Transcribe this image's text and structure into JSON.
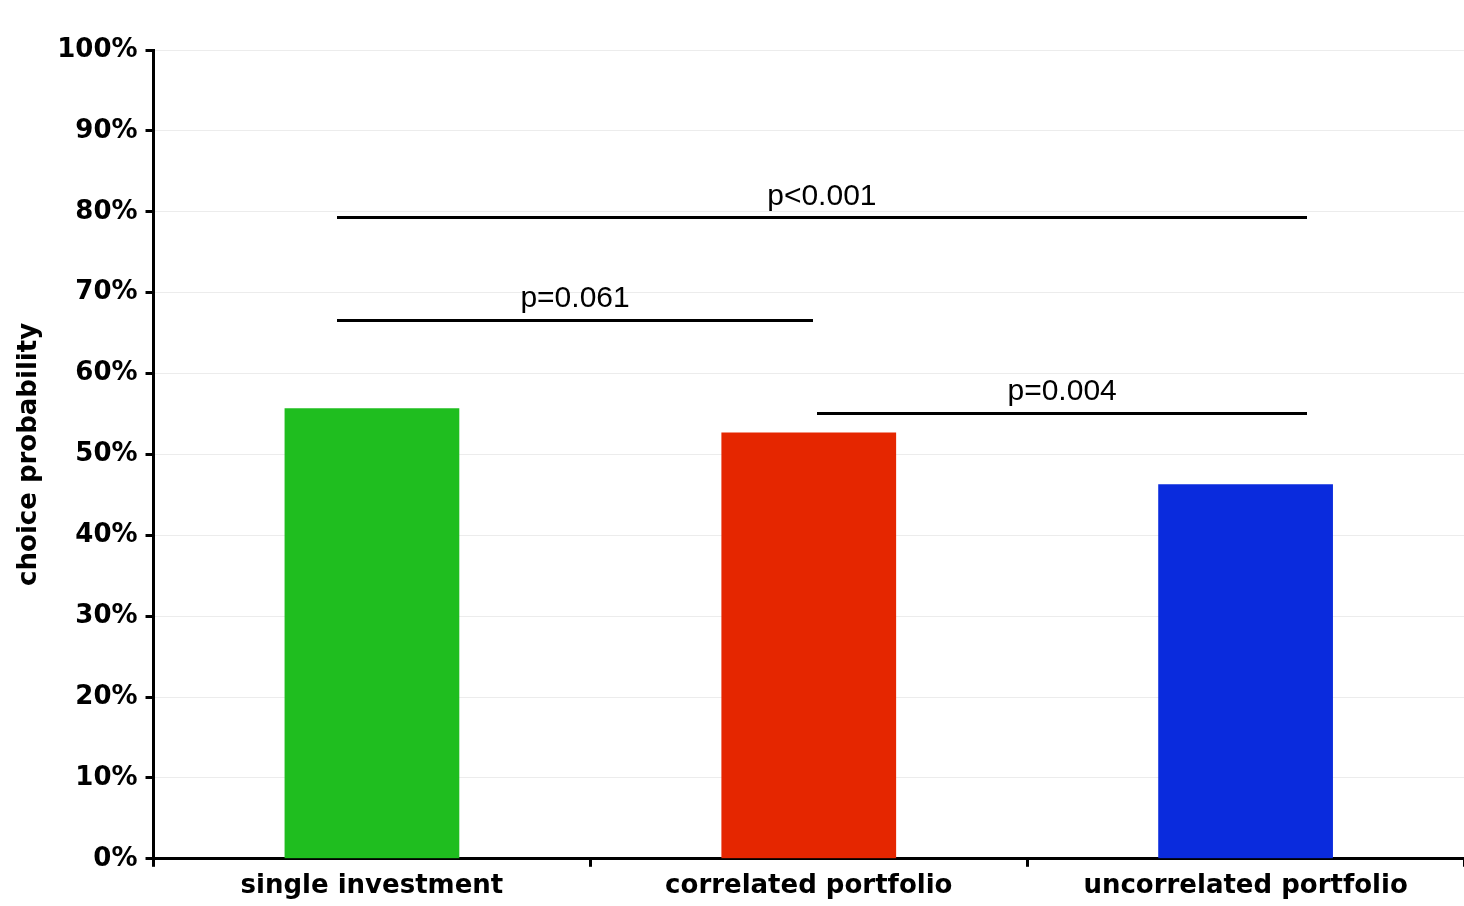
{
  "chart_data": {
    "type": "bar",
    "ylabel": "choice probability",
    "categories": [
      "single investment",
      "correlated portfolio",
      "uncorrelated portfolio"
    ],
    "values": [
      55.7,
      52.7,
      46.3
    ],
    "colors": [
      "#1fbe1f",
      "#e52600",
      "#0a2bdd"
    ],
    "ylim": [
      0,
      100
    ],
    "yticks": [
      {
        "value": 0,
        "label": "0%"
      },
      {
        "value": 10,
        "label": "10%"
      },
      {
        "value": 20,
        "label": "20%"
      },
      {
        "value": 30,
        "label": "30%"
      },
      {
        "value": 40,
        "label": "40%"
      },
      {
        "value": 50,
        "label": "50%"
      },
      {
        "value": 60,
        "label": "60%"
      },
      {
        "value": 70,
        "label": "70%"
      },
      {
        "value": 80,
        "label": "80%"
      },
      {
        "value": 90,
        "label": "90%"
      },
      {
        "value": 100,
        "label": "100%"
      }
    ],
    "grid": "y",
    "legend": false,
    "annotations": [
      "p<0.001",
      "p=0.061",
      "p=0.004"
    ]
  }
}
